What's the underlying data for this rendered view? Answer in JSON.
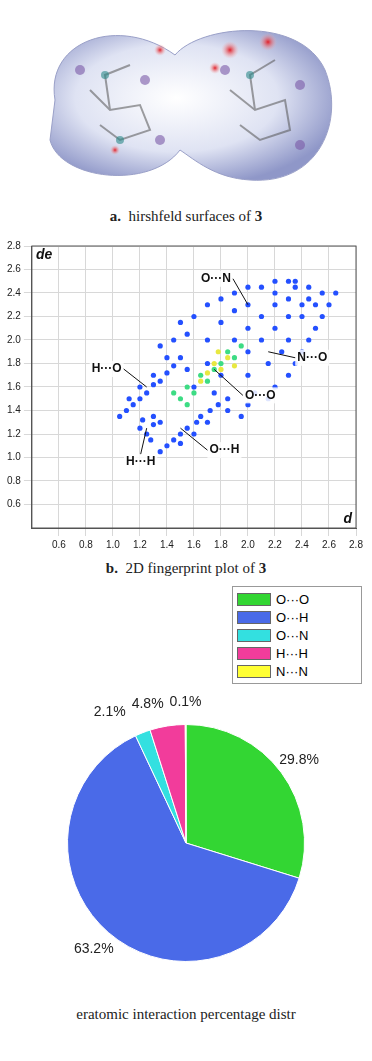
{
  "figure_a": {
    "type": "image",
    "caption": {
      "label": "a.",
      "text": "hirshfeld surfaces of",
      "compound": "3"
    }
  },
  "chart_data": [
    {
      "type": "scatter",
      "caption": {
        "label": "b.",
        "text": "2D fingerprint plot of",
        "compound": "3"
      },
      "x_label": "d",
      "y_label": "de",
      "xlim": [
        0.4,
        2.8
      ],
      "ylim": [
        0.4,
        2.8
      ],
      "xticks": [
        0.6,
        0.8,
        {
          "value": 1,
          "label": "1.0"
        },
        1.2,
        1.4,
        1.6,
        1.8,
        {
          "value": 2,
          "label": "2.0"
        },
        2.2,
        2.4,
        2.6,
        2.8
      ],
      "yticks": [
        0.6,
        0.8,
        {
          "value": 1,
          "label": "1.0"
        },
        1.2,
        1.4,
        1.6,
        1.8,
        {
          "value": 2,
          "label": "2.0"
        },
        2.2,
        2.4,
        2.6,
        2.8
      ],
      "grid": true,
      "series": [
        {
          "color": "#2450ff",
          "points": [
            [
              1.05,
              1.35
            ],
            [
              1.1,
              1.4
            ],
            [
              1.15,
              1.45
            ],
            [
              1.12,
              1.5
            ],
            [
              1.2,
              1.5
            ],
            [
              1.25,
              1.55
            ],
            [
              1.2,
              1.6
            ],
            [
              1.3,
              1.62
            ],
            [
              1.35,
              1.65
            ],
            [
              1.3,
              1.7
            ],
            [
              1.4,
              1.72
            ],
            [
              1.45,
              1.78
            ],
            [
              1.4,
              1.85
            ],
            [
              1.5,
              1.85
            ],
            [
              1.35,
              1.95
            ],
            [
              1.45,
              2.0
            ],
            [
              1.55,
              2.05
            ],
            [
              1.5,
              2.15
            ],
            [
              1.6,
              2.2
            ],
            [
              1.7,
              2.3
            ],
            [
              1.8,
              2.35
            ],
            [
              1.9,
              2.4
            ],
            [
              2.0,
              2.45
            ],
            [
              2.1,
              2.45
            ],
            [
              2.2,
              2.5
            ],
            [
              2.3,
              2.5
            ],
            [
              2.35,
              2.45
            ],
            [
              1.35,
              1.05
            ],
            [
              1.4,
              1.1
            ],
            [
              1.45,
              1.15
            ],
            [
              1.5,
              1.12
            ],
            [
              1.5,
              1.2
            ],
            [
              1.55,
              1.25
            ],
            [
              1.6,
              1.2
            ],
            [
              1.62,
              1.3
            ],
            [
              1.65,
              1.35
            ],
            [
              1.7,
              1.3
            ],
            [
              1.72,
              1.4
            ],
            [
              1.78,
              1.45
            ],
            [
              1.85,
              1.4
            ],
            [
              1.85,
              1.5
            ],
            [
              1.95,
              1.35
            ],
            [
              2.0,
              1.45
            ],
            [
              2.05,
              1.55
            ],
            [
              2.15,
              1.5
            ],
            [
              2.2,
              1.6
            ],
            [
              2.3,
              1.7
            ],
            [
              2.35,
              1.8
            ],
            [
              2.4,
              1.9
            ],
            [
              2.45,
              2.0
            ],
            [
              2.5,
              2.1
            ],
            [
              2.55,
              2.2
            ],
            [
              2.6,
              2.3
            ],
            [
              2.65,
              2.4
            ],
            [
              2.55,
              2.4
            ],
            [
              2.45,
              2.45
            ],
            [
              1.2,
              1.25
            ],
            [
              1.25,
              1.2
            ],
            [
              1.3,
              1.28
            ],
            [
              1.22,
              1.32
            ],
            [
              1.3,
              1.35
            ],
            [
              1.35,
              1.3
            ],
            [
              1.28,
              1.15
            ],
            [
              1.6,
              1.6
            ],
            [
              1.7,
              1.8
            ],
            [
              1.8,
              1.7
            ],
            [
              1.9,
              2.0
            ],
            [
              2.0,
              1.9
            ],
            [
              2.0,
              2.1
            ],
            [
              2.1,
              2.0
            ],
            [
              2.1,
              2.2
            ],
            [
              2.2,
              2.1
            ],
            [
              2.2,
              2.3
            ],
            [
              2.3,
              2.2
            ],
            [
              2.3,
              2.35
            ],
            [
              2.4,
              2.3
            ],
            [
              1.7,
              2.0
            ],
            [
              2.0,
              1.7
            ],
            [
              1.8,
              2.15
            ],
            [
              2.15,
              1.8
            ],
            [
              1.9,
              2.25
            ],
            [
              2.25,
              1.9
            ],
            [
              2.4,
              2.2
            ],
            [
              2.5,
              2.3
            ],
            [
              2.2,
              2.4
            ],
            [
              1.55,
              1.75
            ],
            [
              1.75,
              1.55
            ],
            [
              2.0,
              2.3
            ],
            [
              2.3,
              2.0
            ],
            [
              2.45,
              2.35
            ],
            [
              2.35,
              2.5
            ]
          ]
        },
        {
          "color": "#3ddc84",
          "points": [
            [
              1.55,
              1.6
            ],
            [
              1.6,
              1.55
            ],
            [
              1.65,
              1.7
            ],
            [
              1.7,
              1.65
            ],
            [
              1.75,
              1.75
            ],
            [
              1.8,
              1.8
            ],
            [
              1.85,
              1.9
            ],
            [
              1.9,
              1.85
            ],
            [
              1.95,
              1.95
            ],
            [
              1.5,
              1.5
            ],
            [
              1.45,
              1.55
            ],
            [
              1.55,
              1.45
            ]
          ]
        },
        {
          "color": "#e8e840",
          "points": [
            [
              1.65,
              1.65
            ],
            [
              1.7,
              1.72
            ],
            [
              1.75,
              1.8
            ],
            [
              1.8,
              1.75
            ],
            [
              1.85,
              1.85
            ],
            [
              1.78,
              1.9
            ],
            [
              1.9,
              1.78
            ]
          ]
        }
      ],
      "annotations": [
        {
          "text": "O···N",
          "x": 2.0,
          "y": 2.3
        },
        {
          "text": "H···O",
          "x": 1.25,
          "y": 1.6
        },
        {
          "text": "N···O",
          "x": 2.15,
          "y": 1.9
        },
        {
          "text": "O···O",
          "x": 1.75,
          "y": 1.75
        },
        {
          "text": "O···H",
          "x": 1.5,
          "y": 1.25
        },
        {
          "text": "H···H",
          "x": 1.25,
          "y": 1.25
        }
      ]
    },
    {
      "type": "pie",
      "caption": {
        "text": "eratomic interaction percentage distr"
      },
      "categories": [
        "O···O",
        "O···H",
        "O···N",
        "H···H",
        "N···N"
      ],
      "values": [
        29.8,
        63.2,
        2.1,
        4.8,
        0.1
      ],
      "value_labels": [
        "29.8%",
        "63.2%",
        "2.1%",
        "4.8%",
        "0.1%"
      ],
      "colors": [
        "#33d633",
        "#4a6ae8",
        "#33e0e0",
        "#f23c9b",
        "#ffff33"
      ],
      "legend": "upper right",
      "data_labels": true
    }
  ]
}
